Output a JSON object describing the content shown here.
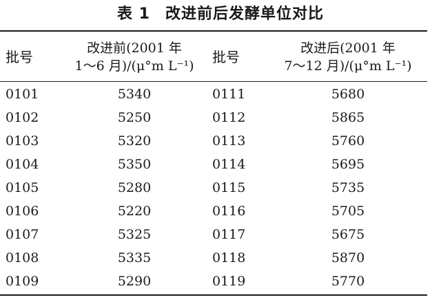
{
  "caption": {
    "number": "表 1",
    "title": "改进前后发酵单位对比"
  },
  "headers": {
    "lot_before": "批号",
    "before_line1": "改进前(2001 年",
    "before_line2": "1～6 月)/(μ°m L⁻¹)",
    "lot_after": "批号",
    "after_line1": "改进后(2001 年",
    "after_line2": "7～12 月)/(μ°m L⁻¹)"
  },
  "rows": [
    {
      "lot_before": "0101",
      "before": "5340",
      "lot_after": "0111",
      "after": "5680"
    },
    {
      "lot_before": "0102",
      "before": "5250",
      "lot_after": "0112",
      "after": "5865"
    },
    {
      "lot_before": "0103",
      "before": "5320",
      "lot_after": "0113",
      "after": "5760"
    },
    {
      "lot_before": "0104",
      "before": "5350",
      "lot_after": "0114",
      "after": "5695"
    },
    {
      "lot_before": "0105",
      "before": "5280",
      "lot_after": "0115",
      "after": "5735"
    },
    {
      "lot_before": "0106",
      "before": "5220",
      "lot_after": "0116",
      "after": "5705"
    },
    {
      "lot_before": "0107",
      "before": "5325",
      "lot_after": "0117",
      "after": "5675"
    },
    {
      "lot_before": "0108",
      "before": "5335",
      "lot_after": "0118",
      "after": "5870"
    },
    {
      "lot_before": "0109",
      "before": "5290",
      "lot_after": "0119",
      "after": "5770"
    }
  ]
}
